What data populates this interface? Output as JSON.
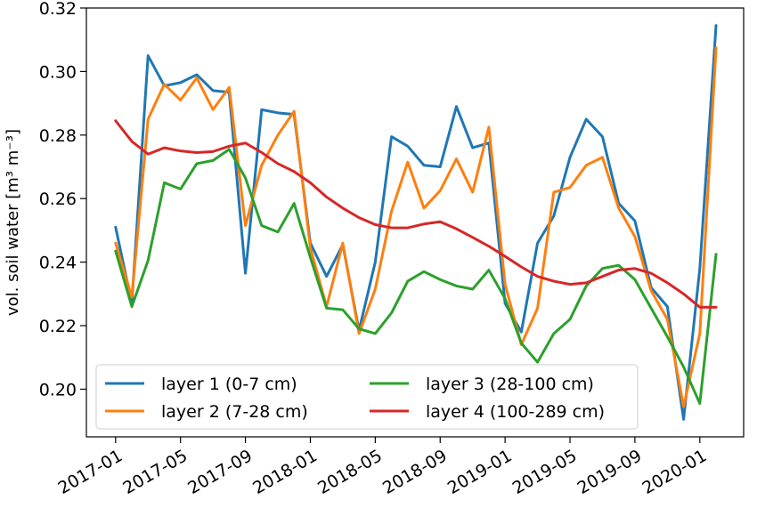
{
  "chart_data": {
    "type": "line",
    "ylabel": "vol. soil water [m³ m⁻³]",
    "xlabel": "",
    "ylim": [
      0.185,
      0.32
    ],
    "yticks": [
      "0.20",
      "0.22",
      "0.24",
      "0.26",
      "0.28",
      "0.30",
      "0.32"
    ],
    "ytick_values": [
      0.2,
      0.22,
      0.24,
      0.26,
      0.28,
      0.3,
      0.32
    ],
    "xticks": [
      "2017-01",
      "2017-05",
      "2017-09",
      "2018-01",
      "2018-05",
      "2018-09",
      "2019-01",
      "2019-05",
      "2019-09",
      "2020-01"
    ],
    "xtick_positions": [
      0,
      4,
      8,
      12,
      16,
      20,
      24,
      28,
      32,
      36
    ],
    "xlim": [
      -1.8,
      38.7
    ],
    "grid": false,
    "legend_position": "lower-left",
    "legend_columns": 2,
    "x": [
      0,
      1,
      2,
      3,
      4,
      5,
      6,
      7,
      8,
      9,
      10,
      11,
      12,
      13,
      14,
      15,
      16,
      17,
      18,
      19,
      20,
      21,
      22,
      23,
      24,
      25,
      26,
      27,
      28,
      29,
      30,
      31,
      32,
      33,
      34,
      35,
      36,
      37
    ],
    "series": [
      {
        "name": "layer 1 (0-7 cm)",
        "color": "#1f77b4",
        "values": [
          0.251,
          0.227,
          0.305,
          0.2955,
          0.2965,
          0.299,
          0.294,
          0.2935,
          0.2365,
          0.288,
          0.287,
          0.2865,
          0.246,
          0.2355,
          0.2455,
          0.2185,
          0.24,
          0.2795,
          0.2765,
          0.2705,
          0.27,
          0.289,
          0.276,
          0.2775,
          0.227,
          0.218,
          0.246,
          0.2545,
          0.273,
          0.285,
          0.2795,
          0.2585,
          0.253,
          0.232,
          0.226,
          0.1905,
          0.238,
          0.3145
        ]
      },
      {
        "name": "layer 2 (7-28 cm)",
        "color": "#ff7f0e",
        "values": [
          0.246,
          0.229,
          0.285,
          0.296,
          0.291,
          0.298,
          0.288,
          0.295,
          0.2515,
          0.2705,
          0.28,
          0.2875,
          0.2445,
          0.226,
          0.246,
          0.2175,
          0.2315,
          0.256,
          0.2715,
          0.257,
          0.2625,
          0.2725,
          0.262,
          0.2825,
          0.233,
          0.214,
          0.2255,
          0.262,
          0.2635,
          0.2705,
          0.273,
          0.257,
          0.248,
          0.231,
          0.222,
          0.1945,
          0.2175,
          0.3075
        ]
      },
      {
        "name": "layer 3 (28-100 cm)",
        "color": "#2ca02c",
        "values": [
          0.2435,
          0.226,
          0.2405,
          0.265,
          0.263,
          0.271,
          0.272,
          0.2755,
          0.2665,
          0.2515,
          0.2495,
          0.2585,
          0.2415,
          0.2255,
          0.225,
          0.219,
          0.2175,
          0.224,
          0.234,
          0.237,
          0.2345,
          0.2325,
          0.2315,
          0.2375,
          0.2285,
          0.2145,
          0.2085,
          0.2175,
          0.222,
          0.2325,
          0.238,
          0.239,
          0.2345,
          0.2255,
          0.2165,
          0.207,
          0.1955,
          0.2425
        ]
      },
      {
        "name": "layer 4 (100-289 cm)",
        "color": "#d62728",
        "values": [
          0.2845,
          0.278,
          0.274,
          0.276,
          0.275,
          0.2745,
          0.2748,
          0.2765,
          0.2775,
          0.2745,
          0.271,
          0.2685,
          0.265,
          0.2605,
          0.257,
          0.254,
          0.2518,
          0.2508,
          0.2508,
          0.252,
          0.2527,
          0.2505,
          0.2478,
          0.245,
          0.2418,
          0.2385,
          0.2355,
          0.234,
          0.233,
          0.2335,
          0.2355,
          0.2375,
          0.238,
          0.2365,
          0.2335,
          0.23,
          0.2258,
          0.2258
        ]
      }
    ]
  }
}
